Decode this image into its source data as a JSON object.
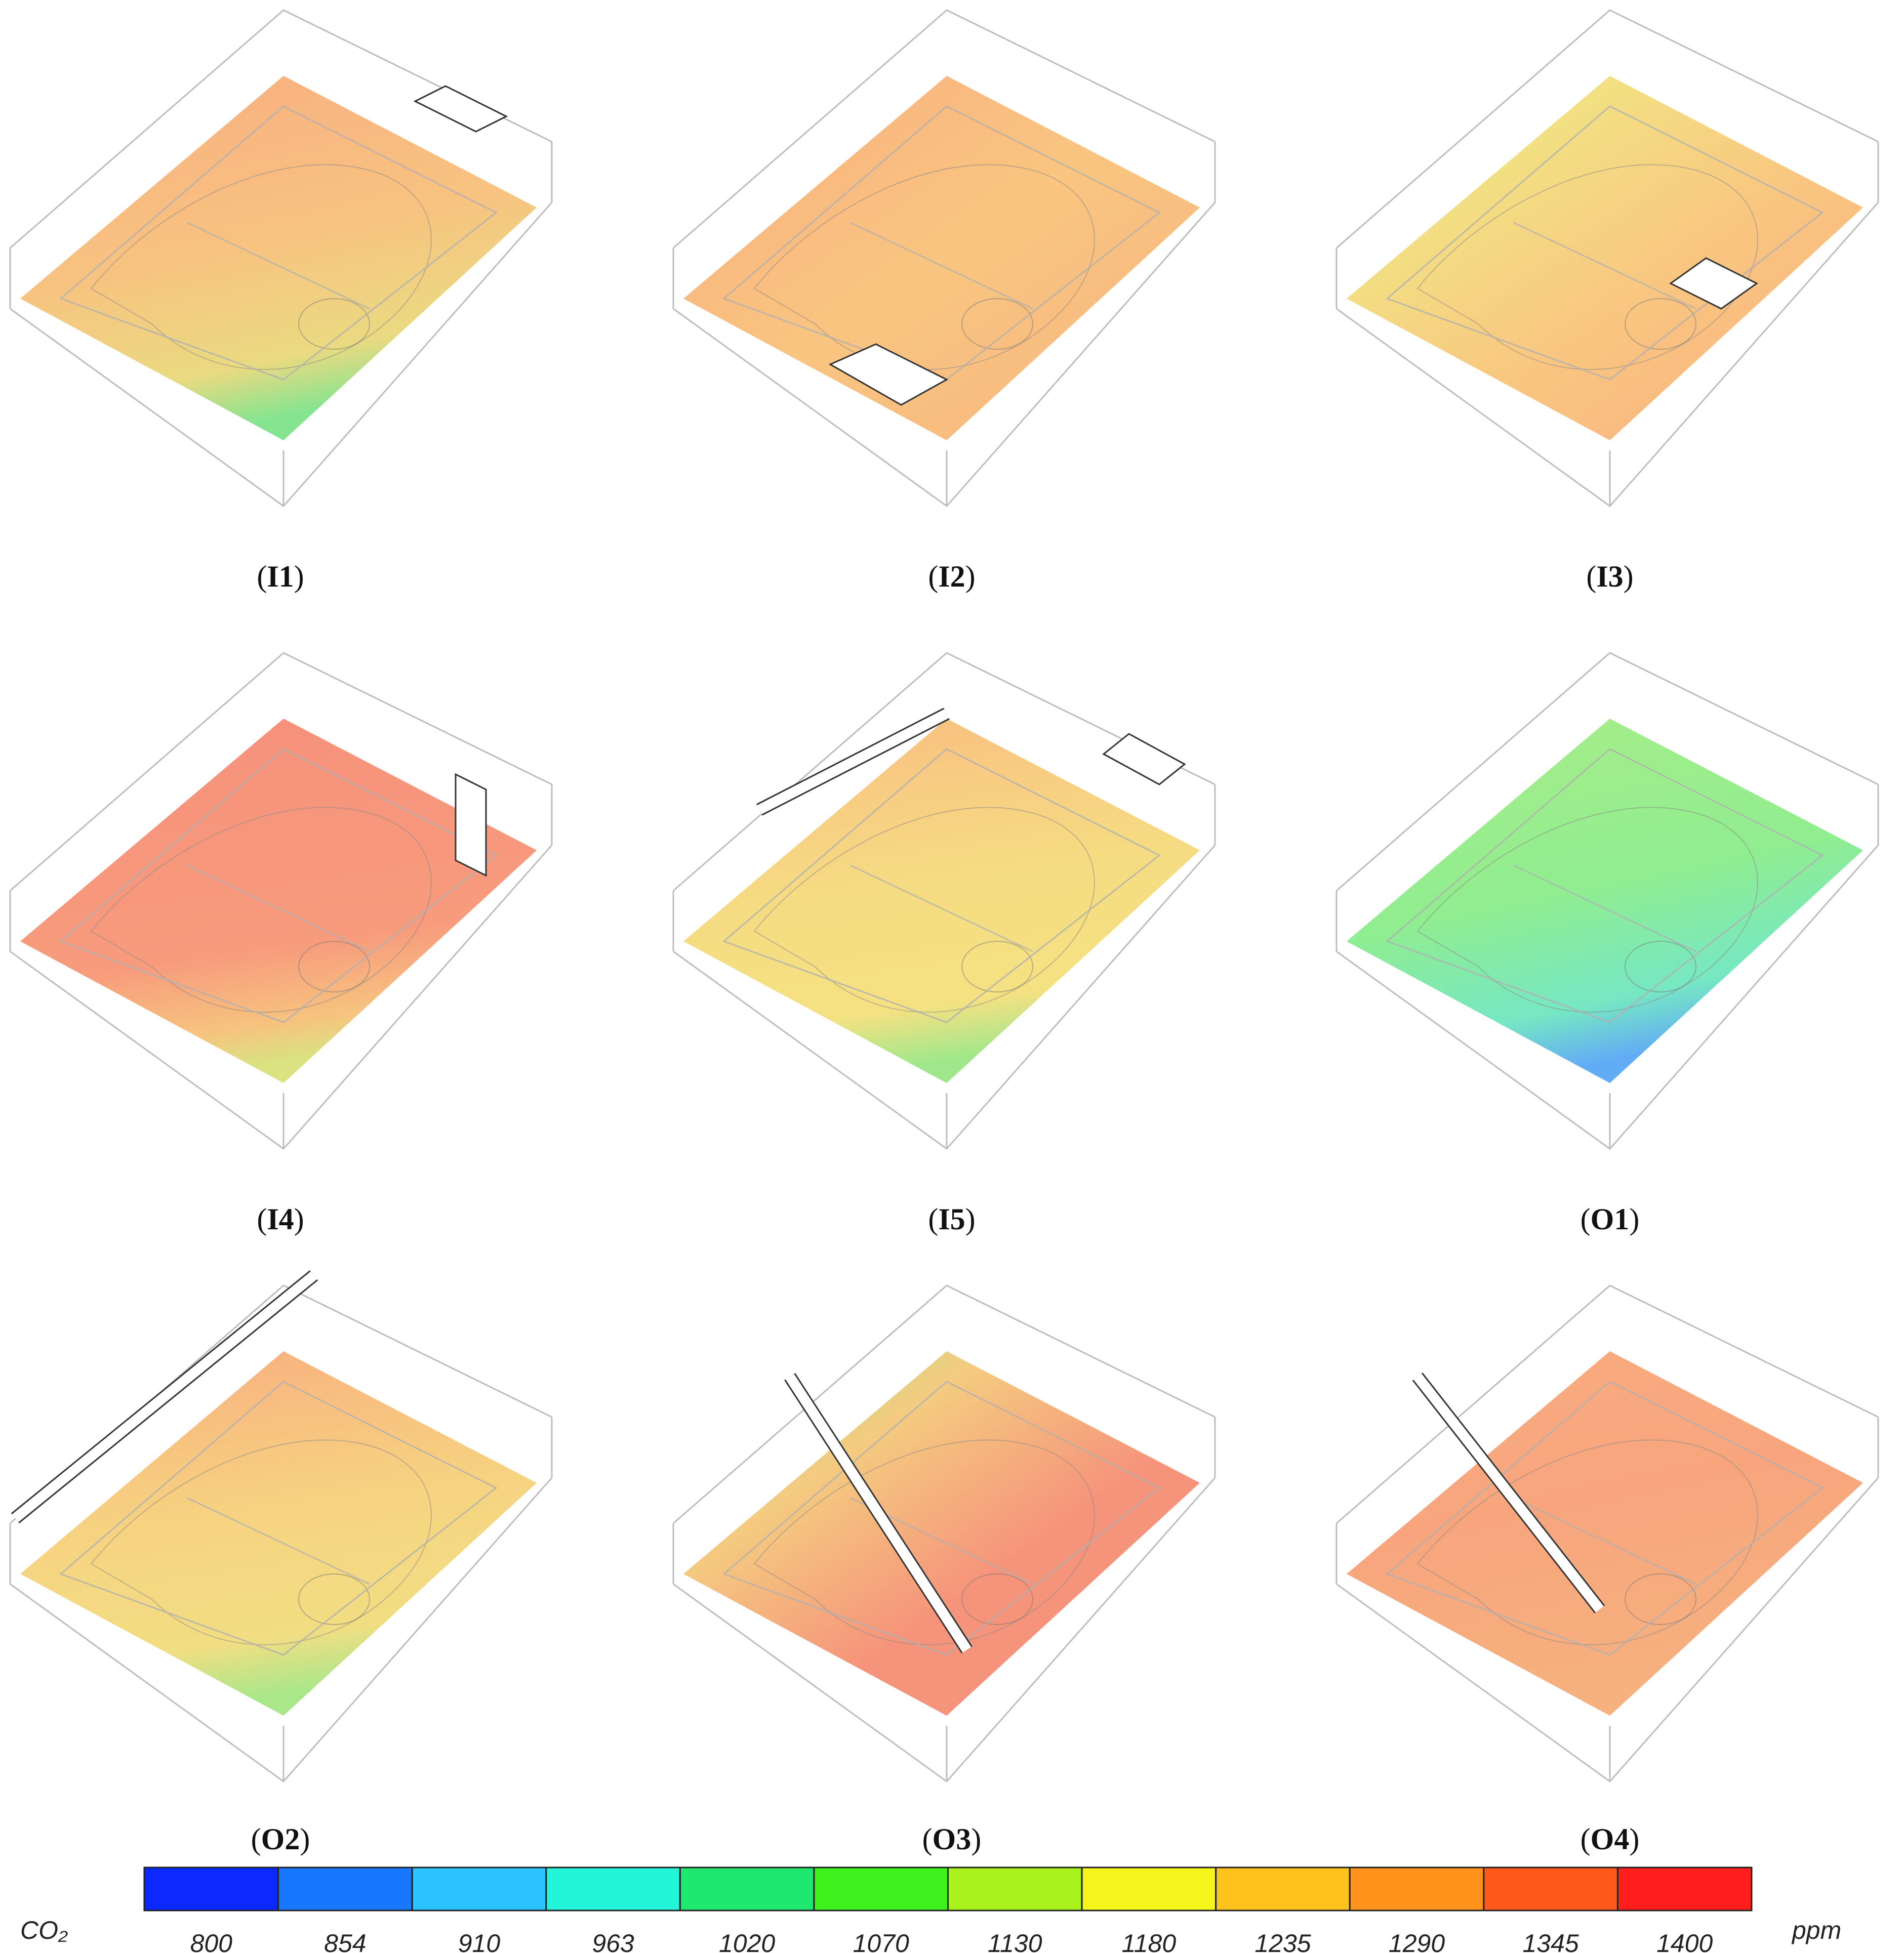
{
  "panels": [
    {
      "id": "I1",
      "label": "I1"
    },
    {
      "id": "I2",
      "label": "I2"
    },
    {
      "id": "I3",
      "label": "I3"
    },
    {
      "id": "I4",
      "label": "I4"
    },
    {
      "id": "I5",
      "label": "I5"
    },
    {
      "id": "O1",
      "label": "O1"
    },
    {
      "id": "O2",
      "label": "O2"
    },
    {
      "id": "O3",
      "label": "O3"
    },
    {
      "id": "O4",
      "label": "O4"
    }
  ],
  "legend": {
    "quantity": "CO₂",
    "unit": "ppm",
    "ticks": [
      "800",
      "854",
      "910",
      "963",
      "1020",
      "1070",
      "1130",
      "1180",
      "1235",
      "1290",
      "1345",
      "1400"
    ],
    "colors": [
      "#0a28ff",
      "#1877ff",
      "#2bc3ff",
      "#22f5d8",
      "#1ee86e",
      "#3ef01c",
      "#a9f21b",
      "#f4f51b",
      "#ffc21c",
      "#ff931c",
      "#ff5a1c",
      "#ff1e1c"
    ]
  }
}
